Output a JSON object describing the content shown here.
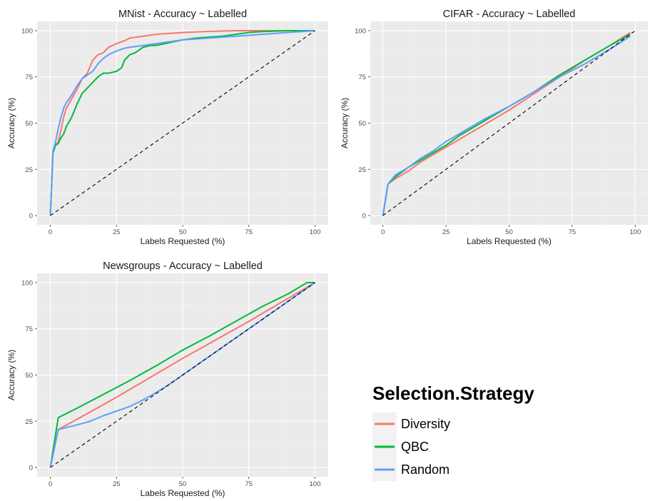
{
  "legend": {
    "title": "Selection.Strategy",
    "items": [
      {
        "label": "Diversity",
        "color": "#F8766D"
      },
      {
        "label": "QBC",
        "color": "#00BA38"
      },
      {
        "label": "Random",
        "color": "#619CFF"
      }
    ]
  },
  "chart_data": [
    {
      "type": "line",
      "title": "MNist - Accuracy ~ Labelled",
      "xlabel": "Labels Requested (%)",
      "ylabel": "Accuracy (%)",
      "xlim": [
        0,
        100
      ],
      "ylim": [
        0,
        100
      ],
      "xticks": [
        0,
        25,
        50,
        75,
        100
      ],
      "yticks": [
        0,
        25,
        50,
        75,
        100
      ],
      "grid": true,
      "diagonal_reference": true,
      "series": [
        {
          "name": "Diversity",
          "color": "#F8766D",
          "x": [
            0,
            1,
            2,
            3,
            4,
            5,
            6,
            8,
            10,
            12,
            14,
            16,
            18,
            20,
            22,
            25,
            28,
            30,
            35,
            40,
            50,
            60,
            70,
            80,
            90,
            100
          ],
          "y": [
            0,
            34,
            38,
            40,
            46,
            53,
            58,
            63,
            68,
            74,
            77,
            84,
            87,
            88,
            91,
            93,
            94.5,
            96,
            97,
            98,
            99,
            99.6,
            100,
            100,
            100,
            100
          ]
        },
        {
          "name": "QBC",
          "color": "#00BA38",
          "x": [
            0,
            1,
            2,
            3,
            4,
            5,
            6,
            8,
            10,
            12,
            14,
            16,
            18,
            20,
            22,
            25,
            27,
            28,
            30,
            32,
            35,
            38,
            40,
            45,
            50,
            55,
            60,
            65,
            70,
            75,
            80,
            90,
            100
          ],
          "y": [
            0,
            34,
            38,
            39,
            42,
            44,
            48,
            53,
            60,
            66,
            69,
            72,
            75,
            77,
            77,
            78,
            80,
            84,
            87,
            88,
            91,
            92,
            92,
            93.5,
            95,
            96,
            96.5,
            97,
            98,
            99,
            99.5,
            100,
            100
          ]
        },
        {
          "name": "Random",
          "color": "#619CFF",
          "x": [
            0,
            1,
            2,
            3,
            4,
            5,
            6,
            8,
            10,
            12,
            14,
            16,
            18,
            20,
            22,
            25,
            28,
            30,
            35,
            40,
            50,
            60,
            70,
            80,
            90,
            100
          ],
          "y": [
            0,
            35,
            40,
            47,
            53,
            58,
            61,
            65,
            70,
            74,
            76,
            78,
            82,
            85,
            87,
            89,
            90.5,
            91,
            92,
            93,
            95,
            96,
            97,
            98,
            99,
            100
          ]
        }
      ]
    },
    {
      "type": "line",
      "title": "CIFAR - Accuracy ~ Labelled",
      "xlabel": "Labels Requested (%)",
      "ylabel": "Accuracy (%)",
      "xlim": [
        0,
        100
      ],
      "ylim": [
        0,
        100
      ],
      "xticks": [
        0,
        25,
        50,
        75,
        100
      ],
      "yticks": [
        0,
        25,
        50,
        75,
        100
      ],
      "grid": true,
      "diagonal_reference": true,
      "series": [
        {
          "name": "Diversity",
          "color": "#F8766D",
          "x": [
            0,
            2,
            5,
            10,
            15,
            20,
            25,
            30,
            40,
            50,
            60,
            70,
            80,
            90,
            98
          ],
          "y": [
            0,
            17,
            20,
            24,
            29,
            33,
            37,
            41,
            49,
            57,
            66,
            75,
            84,
            92,
            99
          ]
        },
        {
          "name": "QBC",
          "color": "#00BA38",
          "x": [
            0,
            2,
            5,
            10,
            15,
            20,
            25,
            30,
            40,
            50,
            60,
            70,
            80,
            90,
            98
          ],
          "y": [
            0,
            17,
            21,
            26,
            30,
            34,
            38,
            43,
            51,
            59,
            67,
            76,
            84,
            92,
            98
          ]
        },
        {
          "name": "Random",
          "color": "#619CFF",
          "x": [
            0,
            2,
            5,
            10,
            15,
            20,
            25,
            30,
            40,
            50,
            60,
            70,
            80,
            90,
            98
          ],
          "y": [
            0,
            17,
            22,
            26,
            31,
            35,
            40,
            44,
            52,
            59,
            67,
            75,
            82,
            90,
            97
          ]
        }
      ]
    },
    {
      "type": "line",
      "title": "Newsgroups - Accuracy ~ Labelled",
      "xlabel": "Labels Requested (%)",
      "ylabel": "Accuracy (%)",
      "xlim": [
        0,
        100
      ],
      "ylim": [
        0,
        100
      ],
      "xticks": [
        0,
        25,
        50,
        75,
        100
      ],
      "yticks": [
        0,
        25,
        50,
        75,
        100
      ],
      "grid": true,
      "diagonal_reference": true,
      "series": [
        {
          "name": "Diversity",
          "color": "#F8766D",
          "x": [
            0,
            3,
            10,
            25,
            50,
            75,
            100
          ],
          "y": [
            0,
            20.5,
            26,
            38,
            59,
            79,
            100
          ]
        },
        {
          "name": "QBC",
          "color": "#00BA38",
          "x": [
            0,
            3,
            10,
            20,
            30,
            40,
            50,
            60,
            70,
            80,
            90,
            97,
            100
          ],
          "y": [
            0,
            27,
            32,
            39.5,
            47,
            55,
            63.5,
            71,
            79,
            87,
            94,
            100,
            100
          ]
        },
        {
          "name": "Random",
          "color": "#619CFF",
          "x": [
            0,
            3,
            10,
            15,
            20,
            25,
            30,
            35,
            40,
            45,
            50,
            60,
            70,
            80,
            90,
            100
          ],
          "y": [
            0,
            20.5,
            23,
            25,
            28,
            30.5,
            33,
            36.5,
            40.5,
            45,
            50,
            60,
            70,
            80,
            90,
            100
          ]
        }
      ]
    }
  ]
}
